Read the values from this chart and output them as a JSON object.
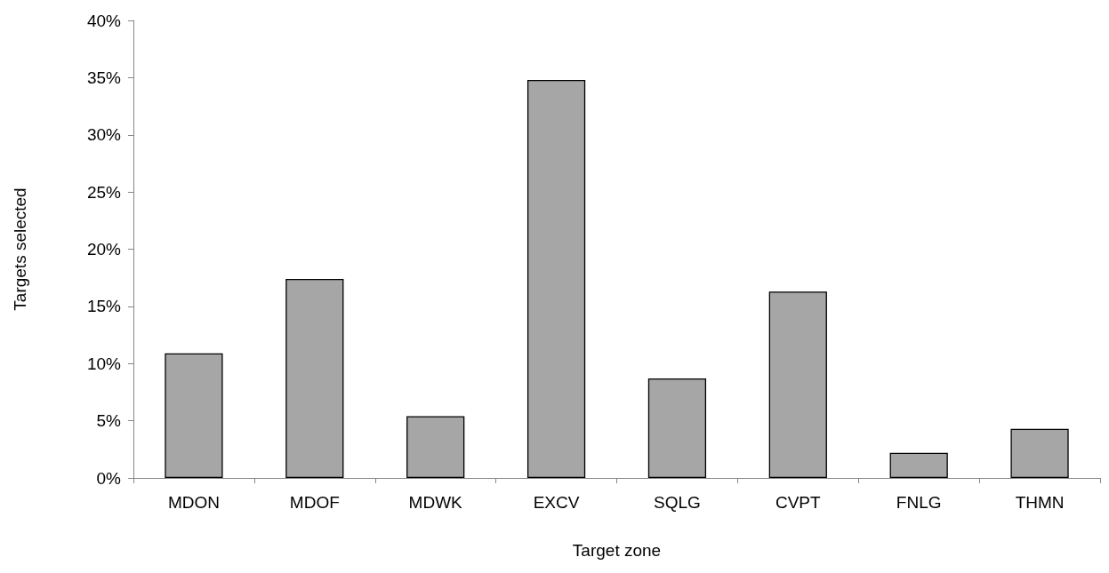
{
  "chart_data": {
    "type": "bar",
    "xlabel": "Target zone",
    "ylabel": "Targets selected",
    "categories": [
      "MDON",
      "MDOF",
      "MDWK",
      "EXCV",
      "SQLG",
      "CVPT",
      "FNLG",
      "THMN"
    ],
    "values": [
      10.9,
      17.4,
      5.4,
      34.8,
      8.7,
      16.3,
      2.2,
      4.3
    ],
    "color": "#a6a6a6",
    "ylim": [
      0,
      40
    ],
    "yticks": [
      {
        "value": 0,
        "label": "0%"
      },
      {
        "value": 5,
        "label": "5%"
      },
      {
        "value": 10,
        "label": "10%"
      },
      {
        "value": 15,
        "label": "15%"
      },
      {
        "value": 20,
        "label": "20%"
      },
      {
        "value": 25,
        "label": "25%"
      },
      {
        "value": 30,
        "label": "30%"
      },
      {
        "value": 35,
        "label": "35%"
      },
      {
        "value": 40,
        "label": "40%"
      }
    ],
    "grid": false
  }
}
